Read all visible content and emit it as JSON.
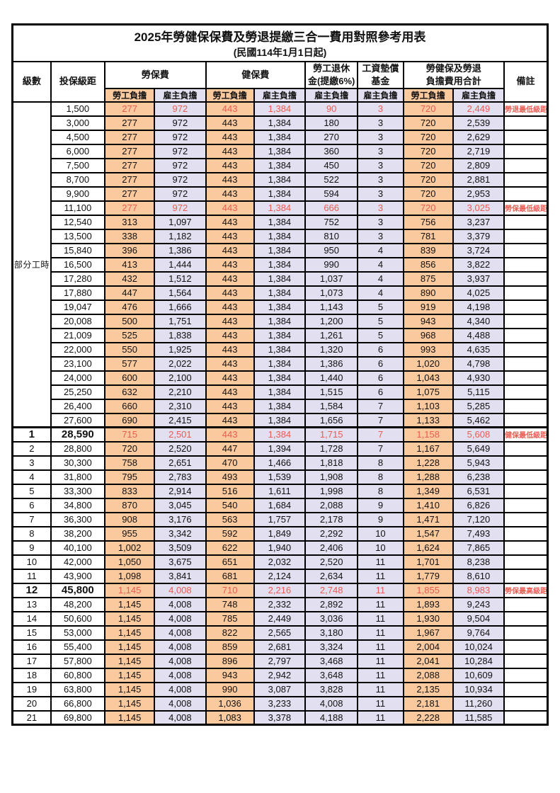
{
  "page": {
    "title": "2025年勞健保保費及勞退提繳三合一費用對照參考用表",
    "subtitle": "(民國114年1月1日起)"
  },
  "table": {
    "colors": {
      "orange": "#FBC99E",
      "lavender": "#E2E0F0",
      "red": "#EA5B52",
      "border": "#000000"
    },
    "headers": {
      "level": "級數",
      "bracket": "投保級距",
      "labor": "勞保費",
      "health": "健保費",
      "pension_line1": "勞工退休",
      "pension_line2": "金(提繳6%)",
      "wage_line1": "工資墊償",
      "wage_line2": "基金",
      "total_line1": "勞健保及勞退",
      "total_line2": "負擔費用合計",
      "note": "備註",
      "self_pay": "勞工負擔",
      "employer_pay": "雇主負擔"
    },
    "part_time_label": "部分工時",
    "part_time_rowspan": 23,
    "rows": [
      {
        "l": null,
        "b": "1,500",
        "v": [
          "277",
          "972",
          "443",
          "1,384",
          "90",
          "3",
          "720",
          "2,449"
        ],
        "n": "勞退最低級距",
        "red": true
      },
      {
        "l": null,
        "b": "3,000",
        "v": [
          "277",
          "972",
          "443",
          "1,384",
          "180",
          "3",
          "720",
          "2,539"
        ],
        "n": ""
      },
      {
        "l": null,
        "b": "4,500",
        "v": [
          "277",
          "972",
          "443",
          "1,384",
          "270",
          "3",
          "720",
          "2,629"
        ],
        "n": ""
      },
      {
        "l": null,
        "b": "6,000",
        "v": [
          "277",
          "972",
          "443",
          "1,384",
          "360",
          "3",
          "720",
          "2,719"
        ],
        "n": ""
      },
      {
        "l": null,
        "b": "7,500",
        "v": [
          "277",
          "972",
          "443",
          "1,384",
          "450",
          "3",
          "720",
          "2,809"
        ],
        "n": ""
      },
      {
        "l": null,
        "b": "8,700",
        "v": [
          "277",
          "972",
          "443",
          "1,384",
          "522",
          "3",
          "720",
          "2,881"
        ],
        "n": ""
      },
      {
        "l": null,
        "b": "9,900",
        "v": [
          "277",
          "972",
          "443",
          "1,384",
          "594",
          "3",
          "720",
          "2,953"
        ],
        "n": ""
      },
      {
        "l": null,
        "b": "11,100",
        "v": [
          "277",
          "972",
          "443",
          "1,384",
          "666",
          "3",
          "720",
          "3,025"
        ],
        "n": "勞保最低級距",
        "red": true
      },
      {
        "l": null,
        "b": "12,540",
        "v": [
          "313",
          "1,097",
          "443",
          "1,384",
          "752",
          "3",
          "756",
          "3,237"
        ],
        "n": ""
      },
      {
        "l": null,
        "b": "13,500",
        "v": [
          "338",
          "1,182",
          "443",
          "1,384",
          "810",
          "3",
          "781",
          "3,379"
        ],
        "n": ""
      },
      {
        "l": null,
        "b": "15,840",
        "v": [
          "396",
          "1,386",
          "443",
          "1,384",
          "950",
          "4",
          "839",
          "3,724"
        ],
        "n": ""
      },
      {
        "l": null,
        "b": "16,500",
        "v": [
          "413",
          "1,444",
          "443",
          "1,384",
          "990",
          "4",
          "856",
          "3,822"
        ],
        "n": ""
      },
      {
        "l": null,
        "b": "17,280",
        "v": [
          "432",
          "1,512",
          "443",
          "1,384",
          "1,037",
          "4",
          "875",
          "3,937"
        ],
        "n": ""
      },
      {
        "l": null,
        "b": "17,880",
        "v": [
          "447",
          "1,564",
          "443",
          "1,384",
          "1,073",
          "4",
          "890",
          "4,025"
        ],
        "n": ""
      },
      {
        "l": null,
        "b": "19,047",
        "v": [
          "476",
          "1,666",
          "443",
          "1,384",
          "1,143",
          "5",
          "919",
          "4,198"
        ],
        "n": ""
      },
      {
        "l": null,
        "b": "20,008",
        "v": [
          "500",
          "1,751",
          "443",
          "1,384",
          "1,200",
          "5",
          "943",
          "4,340"
        ],
        "n": ""
      },
      {
        "l": null,
        "b": "21,009",
        "v": [
          "525",
          "1,838",
          "443",
          "1,384",
          "1,261",
          "5",
          "968",
          "4,488"
        ],
        "n": ""
      },
      {
        "l": null,
        "b": "22,000",
        "v": [
          "550",
          "1,925",
          "443",
          "1,384",
          "1,320",
          "6",
          "993",
          "4,635"
        ],
        "n": ""
      },
      {
        "l": null,
        "b": "23,100",
        "v": [
          "577",
          "2,022",
          "443",
          "1,384",
          "1,386",
          "6",
          "1,020",
          "4,798"
        ],
        "n": ""
      },
      {
        "l": null,
        "b": "24,000",
        "v": [
          "600",
          "2,100",
          "443",
          "1,384",
          "1,440",
          "6",
          "1,043",
          "4,930"
        ],
        "n": ""
      },
      {
        "l": null,
        "b": "25,250",
        "v": [
          "632",
          "2,210",
          "443",
          "1,384",
          "1,515",
          "6",
          "1,075",
          "5,115"
        ],
        "n": ""
      },
      {
        "l": null,
        "b": "26,400",
        "v": [
          "660",
          "2,310",
          "443",
          "1,384",
          "1,584",
          "7",
          "1,103",
          "5,285"
        ],
        "n": ""
      },
      {
        "l": null,
        "b": "27,600",
        "v": [
          "690",
          "2,415",
          "443",
          "1,384",
          "1,656",
          "7",
          "1,133",
          "5,462"
        ],
        "n": ""
      },
      {
        "l": "1",
        "b": "28,590",
        "v": [
          "715",
          "2,501",
          "443",
          "1,384",
          "1,715",
          "7",
          "1,158",
          "5,608"
        ],
        "n": "健保最低級距",
        "red": true,
        "big": true,
        "sect": true
      },
      {
        "l": "2",
        "b": "28,800",
        "v": [
          "720",
          "2,520",
          "447",
          "1,394",
          "1,728",
          "7",
          "1,167",
          "5,649"
        ],
        "n": ""
      },
      {
        "l": "3",
        "b": "30,300",
        "v": [
          "758",
          "2,651",
          "470",
          "1,466",
          "1,818",
          "8",
          "1,228",
          "5,943"
        ],
        "n": ""
      },
      {
        "l": "4",
        "b": "31,800",
        "v": [
          "795",
          "2,783",
          "493",
          "1,539",
          "1,908",
          "8",
          "1,288",
          "6,238"
        ],
        "n": ""
      },
      {
        "l": "5",
        "b": "33,300",
        "v": [
          "833",
          "2,914",
          "516",
          "1,611",
          "1,998",
          "8",
          "1,349",
          "6,531"
        ],
        "n": ""
      },
      {
        "l": "6",
        "b": "34,800",
        "v": [
          "870",
          "3,045",
          "540",
          "1,684",
          "2,088",
          "9",
          "1,410",
          "6,826"
        ],
        "n": ""
      },
      {
        "l": "7",
        "b": "36,300",
        "v": [
          "908",
          "3,176",
          "563",
          "1,757",
          "2,178",
          "9",
          "1,471",
          "7,120"
        ],
        "n": ""
      },
      {
        "l": "8",
        "b": "38,200",
        "v": [
          "955",
          "3,342",
          "592",
          "1,849",
          "2,292",
          "10",
          "1,547",
          "7,493"
        ],
        "n": ""
      },
      {
        "l": "9",
        "b": "40,100",
        "v": [
          "1,002",
          "3,509",
          "622",
          "1,940",
          "2,406",
          "10",
          "1,624",
          "7,865"
        ],
        "n": ""
      },
      {
        "l": "10",
        "b": "42,000",
        "v": [
          "1,050",
          "3,675",
          "651",
          "2,032",
          "2,520",
          "11",
          "1,701",
          "8,238"
        ],
        "n": ""
      },
      {
        "l": "11",
        "b": "43,900",
        "v": [
          "1,098",
          "3,841",
          "681",
          "2,124",
          "2,634",
          "11",
          "1,779",
          "8,610"
        ],
        "n": ""
      },
      {
        "l": "12",
        "b": "45,800",
        "v": [
          "1,145",
          "4,008",
          "710",
          "2,216",
          "2,748",
          "11",
          "1,855",
          "8,983"
        ],
        "n": "勞保最高級距",
        "red": true,
        "big": true
      },
      {
        "l": "13",
        "b": "48,200",
        "v": [
          "1,145",
          "4,008",
          "748",
          "2,332",
          "2,892",
          "11",
          "1,893",
          "9,243"
        ],
        "n": ""
      },
      {
        "l": "14",
        "b": "50,600",
        "v": [
          "1,145",
          "4,008",
          "785",
          "2,449",
          "3,036",
          "11",
          "1,930",
          "9,504"
        ],
        "n": ""
      },
      {
        "l": "15",
        "b": "53,000",
        "v": [
          "1,145",
          "4,008",
          "822",
          "2,565",
          "3,180",
          "11",
          "1,967",
          "9,764"
        ],
        "n": ""
      },
      {
        "l": "16",
        "b": "55,400",
        "v": [
          "1,145",
          "4,008",
          "859",
          "2,681",
          "3,324",
          "11",
          "2,004",
          "10,024"
        ],
        "n": ""
      },
      {
        "l": "17",
        "b": "57,800",
        "v": [
          "1,145",
          "4,008",
          "896",
          "2,797",
          "3,468",
          "11",
          "2,041",
          "10,284"
        ],
        "n": ""
      },
      {
        "l": "18",
        "b": "60,800",
        "v": [
          "1,145",
          "4,008",
          "943",
          "2,942",
          "3,648",
          "11",
          "2,088",
          "10,609"
        ],
        "n": ""
      },
      {
        "l": "19",
        "b": "63,800",
        "v": [
          "1,145",
          "4,008",
          "990",
          "3,087",
          "3,828",
          "11",
          "2,135",
          "10,934"
        ],
        "n": ""
      },
      {
        "l": "20",
        "b": "66,800",
        "v": [
          "1,145",
          "4,008",
          "1,036",
          "3,233",
          "4,008",
          "11",
          "2,181",
          "11,260"
        ],
        "n": ""
      },
      {
        "l": "21",
        "b": "69,800",
        "v": [
          "1,145",
          "4,008",
          "1,083",
          "3,378",
          "4,188",
          "11",
          "2,228",
          "11,585"
        ],
        "n": ""
      }
    ]
  }
}
